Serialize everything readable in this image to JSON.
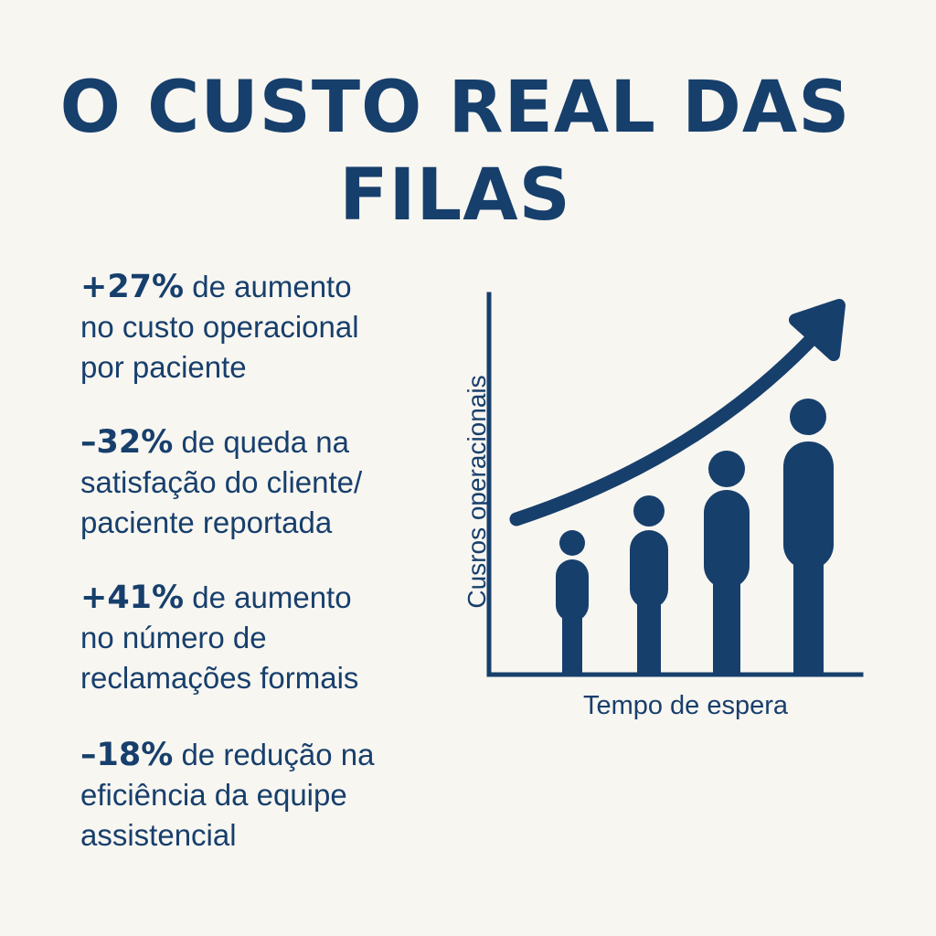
{
  "title": {
    "line1": "O CUSTO REAL DAS",
    "line2": "FILAS"
  },
  "stats": [
    {
      "value": "+27%",
      "line1_rest": " de aumento",
      "line2": "no custo operacional",
      "line3": "por paciente"
    },
    {
      "value": "–32%",
      "line1_rest": " de queda na",
      "line2": "satisfação do cliente/",
      "line3": "paciente reportada"
    },
    {
      "value": "+41%",
      "line1_rest": " de aumento",
      "line2": "no número de",
      "line3": "reclamações formais"
    },
    {
      "value": "–18%",
      "line1_rest": " de redução na",
      "line2": "eficiência da equipe",
      "line3": "assistencial"
    }
  ],
  "chart": {
    "ylabel": "Cusros operacionais",
    "xlabel": "Tempo de espera",
    "color": "#173f6c",
    "figures": 4
  }
}
